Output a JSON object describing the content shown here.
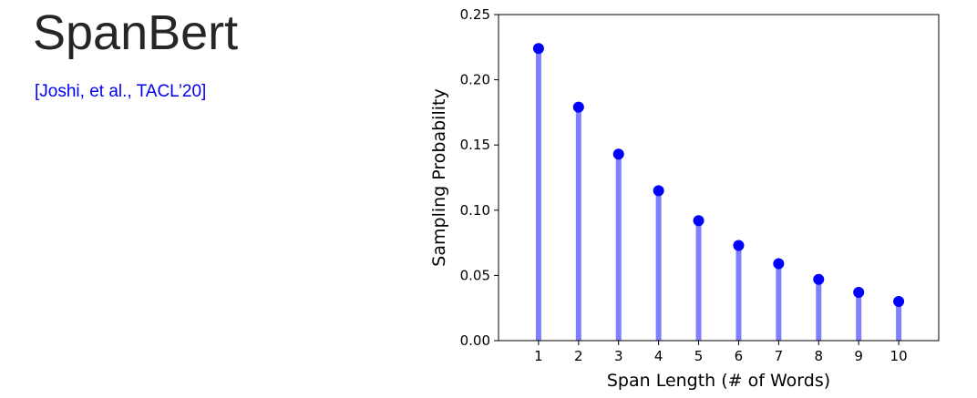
{
  "slide": {
    "title": "SpanBert",
    "citation": "[Joshi, et al., TACL’20]"
  },
  "chart_data": {
    "type": "stem",
    "xlabel": "Span Length (# of Words)",
    "ylabel": "Sampling Probability",
    "x": [
      1,
      2,
      3,
      4,
      5,
      6,
      7,
      8,
      9,
      10
    ],
    "values": [
      0.224,
      0.179,
      0.143,
      0.115,
      0.092,
      0.073,
      0.059,
      0.047,
      0.037,
      0.03
    ],
    "xlim": [
      0,
      11
    ],
    "ylim": [
      0,
      0.25
    ],
    "xticks": [
      "1",
      "2",
      "3",
      "4",
      "5",
      "6",
      "7",
      "8",
      "9",
      "10"
    ],
    "yticks": [
      "0.00",
      "0.05",
      "0.10",
      "0.15",
      "0.20",
      "0.25"
    ],
    "grid": false,
    "colors": {
      "stem": "#8080ff",
      "marker": "#0000ff"
    }
  }
}
